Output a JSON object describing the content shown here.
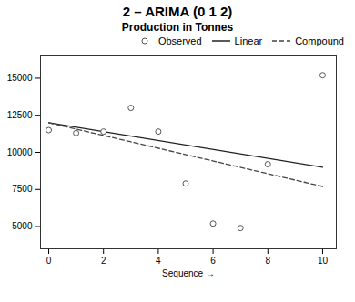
{
  "chart_data": {
    "type": "line",
    "title": "2 – ARIMA (0 1 2)",
    "subtitle": "Production in Tonnes",
    "x_label": "Sequence",
    "series": [
      {
        "name": "Observed",
        "type": "scatter",
        "marker": "circle",
        "color": "#555555",
        "x": [
          0,
          1,
          2,
          3,
          4,
          5,
          6,
          7,
          8,
          10
        ],
        "values": [
          11500,
          11300,
          11400,
          13000,
          11400,
          7900,
          5200,
          4900,
          9200,
          15200
        ]
      },
      {
        "name": "Linear",
        "type": "line",
        "line_style": "solid",
        "color": "#222222",
        "x": [
          0,
          10
        ],
        "values": [
          12000,
          9000
        ]
      },
      {
        "name": "Compound",
        "type": "line",
        "line_style": "dashed",
        "color": "#444444",
        "x": [
          0,
          10
        ],
        "values": [
          12000,
          7700
        ]
      }
    ],
    "xlim": [
      -0.3,
      10.5
    ],
    "ylim": [
      3500,
      16500
    ],
    "xticks": [
      0,
      2,
      4,
      6,
      8,
      10
    ],
    "yticks": [
      5000,
      7500,
      10000,
      12500,
      15000
    ],
    "grid": false,
    "legend": "upper right"
  }
}
